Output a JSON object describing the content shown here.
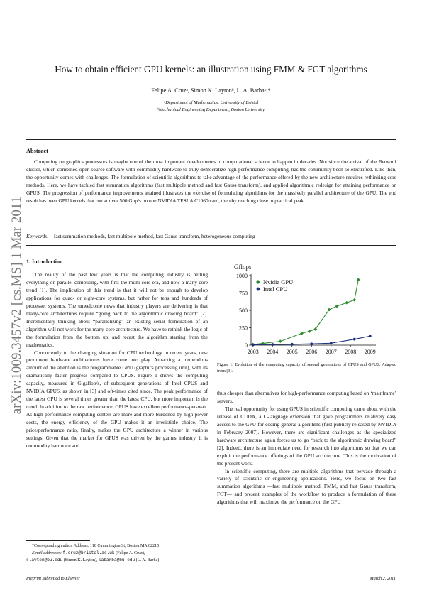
{
  "paper": {
    "title": "How to obtain efficient GPU kernels: an illustration using FMM & FGT algorithms",
    "authors": "Felipe A. Cruzᵃ, Simon K. Laytonᵇ, L. A. Barbaᵇ,*",
    "affiliation_a": "ᵃDepartment of Mathematics, University of Bristol",
    "affiliation_b": "ᵇMechanical Engineering Department, Boston University",
    "abstract_heading": "Abstract",
    "abstract": "Computing on graphics processors is maybe one of the most important developments in computational science to happen in decades. Not since the arrival of the Beowulf cluster, which combined open source software with commodity hardware to truly democratize high-performance computing, has the community been so electrified. Like then, the opportunity comes with challenges. The formulation of scientific algorithms to take advantage of the performance offered by the new architecture requires rethinking core methods. Here, we have tackled fast summation algorithms (fast multipole method and fast Gauss transform), and applied algorithmic redesign for attaining performance on GPUS. The progression of performance improvements attained illustrates the exercise of formulating algorithms for the massively parallel architecture of the GPU. The end result has been GPU kernels that run at over 500 Gop/s on one NVIDIA TESLA C1060 card, thereby reaching close to practical peak.",
    "keywords_label": "Keywords:",
    "keywords": "fast summation methods, fast multipole method, fast Gauss transform, heterogeneous computing",
    "section_heading": "1. Introduction",
    "left_paragraphs": [
      "The reality of the past few years is that the computing industry is betting everything on parallel computing, with first the multi-core era, and now a many-core trend [1]. The implication of this trend is that it will not be enough to develop applications for quad- or eight-core systems, but rather for tens and hundreds of processor systems. The unwelcome news that industry players are delivering is that many-core architectures require “going back to the algorithmic drawing board” [2]. Incrementally thinking about “parallelizing” an existing serial formulation of an algorithm will not work for the many-core architecture. We have to rethink the logic of the formulation from the bottom up, and recast the algorithm starting from the mathematics.",
      "Concurrently to the changing situation for CPU technology in recent years, new prominent hardware architectures have come into play. Attracting a tremendous amount of the attention is the programmable GPU (graphics processing unit), with its dramatically faster progress compared to CPUS. Figure 1 shows the computing capacity, measured in Gigaflop/s, of subsequent generations of Intel CPUS and NVIDIA GPUS, as shown in [3] and oft-times cited since. The peak performance of the latest GPU is several times greater than the latest CPU, but more important is the trend. In addition to the raw performance, GPUS have excellent performance-per-watt. As high-performance computing centers are more and more burdened by high power costs, the energy efficiency of the GPU makes it an irresistible choice. The price/performance ratio, finally, makes the GPU architecture a winner in various settings. Given that the market for GPUS was driven by the games industry, it is commodity hardware and"
    ],
    "right_paragraphs": [
      "thus cheaper than alternatives for high-performance computing based on ‘mainframe’ servers.",
      "The real opportunity for using GPUS in scientific computing came about with the release of CUDA, a C-language extension that gave programmers relatively easy access to the GPU for coding general algorithms (first publicly released by NVIDIA in February 2007). However, there are significant challenges as the specialized hardware architecture again forces us to go “back to the algorithmic drawing board” [2]. Indeed, there is an immediate need for research into algorithms so that we can exploit the performance offerings of the GPU architecture. This is the motivation of the present work.",
      "In scientific computing, there are multiple algorithms that pervade through a variety of scientific or engineering applications. Here, we focus on two fast summation algorithms —fast multipole method, FMM, and fast Gauss transform, FGT— and present examples of the workflow to produce a formulation of these algorithms that will maximize the performance on the GPU"
    ],
    "figure_caption": "Figure 1: Evolution of the computing capacity of several generations of CPUS and GPUS. Adapted from [3].",
    "footnote_corresponding": "*Corresponding author. Address: 110 Cummington St, Boston MA 02215",
    "footnote_email_label": "Email addresses:",
    "footnote_email_1": "f.cruz@bristol.ac.uk",
    "footnote_email_1_name": "(Felipe A. Cruz),",
    "footnote_email_2": "slayton@bu.edu",
    "footnote_email_2_name": "(Simon K. Layton),",
    "footnote_email_3": "labarba@bu.edu",
    "footnote_email_3_name": "(L. A. Barba)",
    "footer_left": "Preprint submitted to Elsevier",
    "footer_right": "March 2, 2011",
    "arxiv_stamp": "arXiv:1009.3457v2  [cs.MS]  1 Mar 2011"
  },
  "chart_data": {
    "type": "line",
    "ylabel": "Gflops",
    "xlim": [
      2002.9,
      2009.3
    ],
    "ylim": [
      0,
      1000
    ],
    "x_ticks": [
      2003,
      2004,
      2005,
      2006,
      2007,
      2008,
      2009
    ],
    "y_ticks": [
      0,
      250,
      500,
      750,
      1000
    ],
    "legend_position": "top-left",
    "series": [
      {
        "name": "Nvidia GPU",
        "color": "#2e8b2e",
        "marker": "diamond",
        "points": [
          [
            2003.0,
            10
          ],
          [
            2003.5,
            25
          ],
          [
            2004.4,
            55
          ],
          [
            2005.5,
            170
          ],
          [
            2005.9,
            200
          ],
          [
            2006.2,
            230
          ],
          [
            2006.9,
            510
          ],
          [
            2007.3,
            560
          ],
          [
            2007.8,
            610
          ],
          [
            2008.2,
            650
          ],
          [
            2008.4,
            940
          ]
        ]
      },
      {
        "name": "Intel CPU",
        "color": "#1c2f7a",
        "marker": "circle",
        "points": [
          [
            2003.0,
            5
          ],
          [
            2004.0,
            10
          ],
          [
            2005.0,
            12
          ],
          [
            2006.0,
            18
          ],
          [
            2007.0,
            28
          ],
          [
            2008.2,
            85
          ],
          [
            2009.0,
            130
          ]
        ]
      }
    ]
  }
}
